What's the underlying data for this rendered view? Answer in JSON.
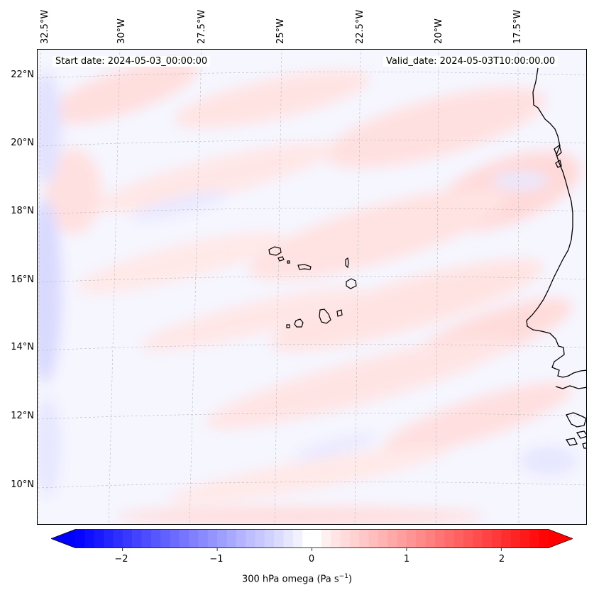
{
  "map": {
    "start_label": "Start date: 2024-05-03_00:00:00",
    "valid_label": "Valid_date: 2024-05-03T10:00:00.00",
    "longitude_labels": [
      "32.5°W",
      "30°W",
      "27.5°W",
      "25°W",
      "22.5°W",
      "20°W",
      "17.5°W"
    ],
    "latitude_labels": [
      "22°N",
      "20°N",
      "18°N",
      "16°N",
      "14°N",
      "12°N",
      "10°N"
    ],
    "variable": "300 hPa omega",
    "colors": {
      "positive": "#ff0000",
      "negative": "#0000ff",
      "neutral": "#ffffff",
      "coast": "#000000"
    }
  },
  "colorbar": {
    "ticks": [
      "−2",
      "−1",
      "0",
      "1",
      "2"
    ],
    "tick_values": [
      -2,
      -1,
      0,
      1,
      2
    ],
    "range": [
      -2.5,
      2.5
    ],
    "label_main": "300 hPa omega (Pa s",
    "label_exp": "−1",
    "label_close": ")"
  }
}
